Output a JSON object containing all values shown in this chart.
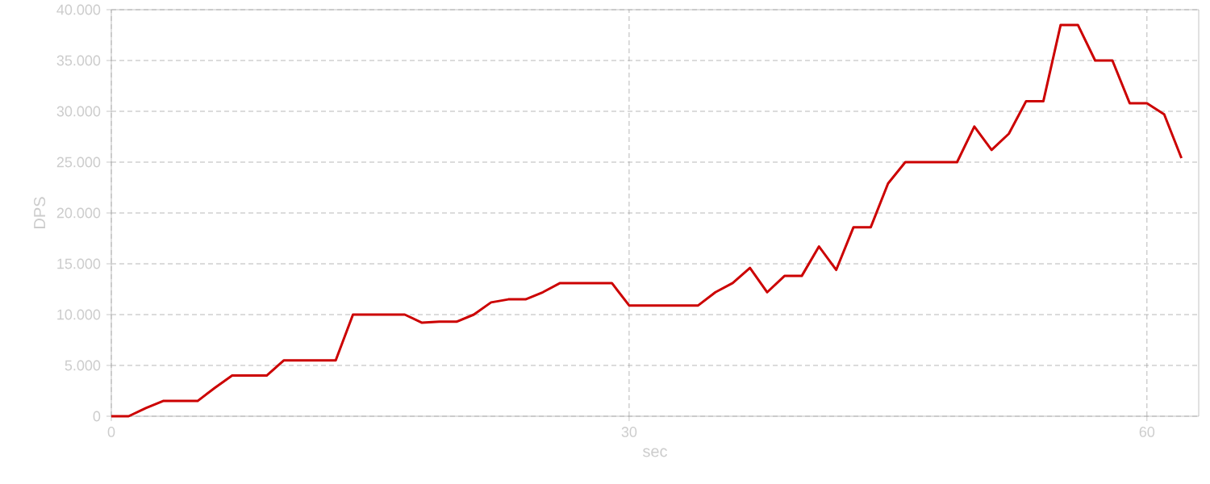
{
  "chart_data": {
    "type": "line",
    "xlabel": "sec",
    "ylabel": "DPS",
    "x": [
      0,
      1,
      2,
      3,
      4,
      5,
      6,
      7,
      8,
      9,
      10,
      11,
      12,
      13,
      14,
      15,
      16,
      17,
      18,
      19,
      20,
      21,
      22,
      23,
      24,
      25,
      26,
      27,
      28,
      29,
      30,
      31,
      32,
      33,
      34,
      35,
      36,
      37,
      38,
      39,
      40,
      41,
      42,
      43,
      44,
      45,
      46,
      47,
      48,
      49,
      50,
      51,
      52,
      53,
      54,
      55,
      56,
      57,
      58,
      59,
      60,
      61,
      62
    ],
    "series": [
      {
        "color": "#cc0000",
        "values": [
          0,
          0,
          800,
          1500,
          1500,
          1500,
          2800,
          4000,
          4000,
          4000,
          5500,
          5500,
          5500,
          5500,
          10000,
          10000,
          10000,
          10000,
          9200,
          9300,
          9300,
          10000,
          11200,
          11500,
          11500,
          12200,
          13100,
          13100,
          13100,
          13100,
          10900,
          10900,
          10900,
          10900,
          10900,
          12200,
          13100,
          14600,
          12200,
          13800,
          13800,
          16700,
          14400,
          18600,
          18600,
          22900,
          25000,
          25000,
          25000,
          25000,
          28500,
          26200,
          27800,
          31000,
          31000,
          38500,
          38500,
          35000,
          35000,
          30800,
          30800,
          29700,
          25400
        ]
      }
    ],
    "xlim": [
      0,
      63
    ],
    "ylim": [
      0,
      40000
    ],
    "xticks": [
      0,
      30,
      60
    ],
    "yticks": [
      0,
      {
        "value": 5000,
        "label": "5.000"
      },
      {
        "value": 10000,
        "label": "10.000"
      },
      {
        "value": 15000,
        "label": "15.000"
      },
      {
        "value": 20000,
        "label": "20.000"
      },
      {
        "value": 25000,
        "label": "25.000"
      },
      {
        "value": 30000,
        "label": "30.000"
      },
      {
        "value": 35000,
        "label": "35.000"
      },
      {
        "value": 40000,
        "label": "40.000"
      }
    ],
    "grid": true,
    "marker": "none",
    "line_style": "solid"
  }
}
